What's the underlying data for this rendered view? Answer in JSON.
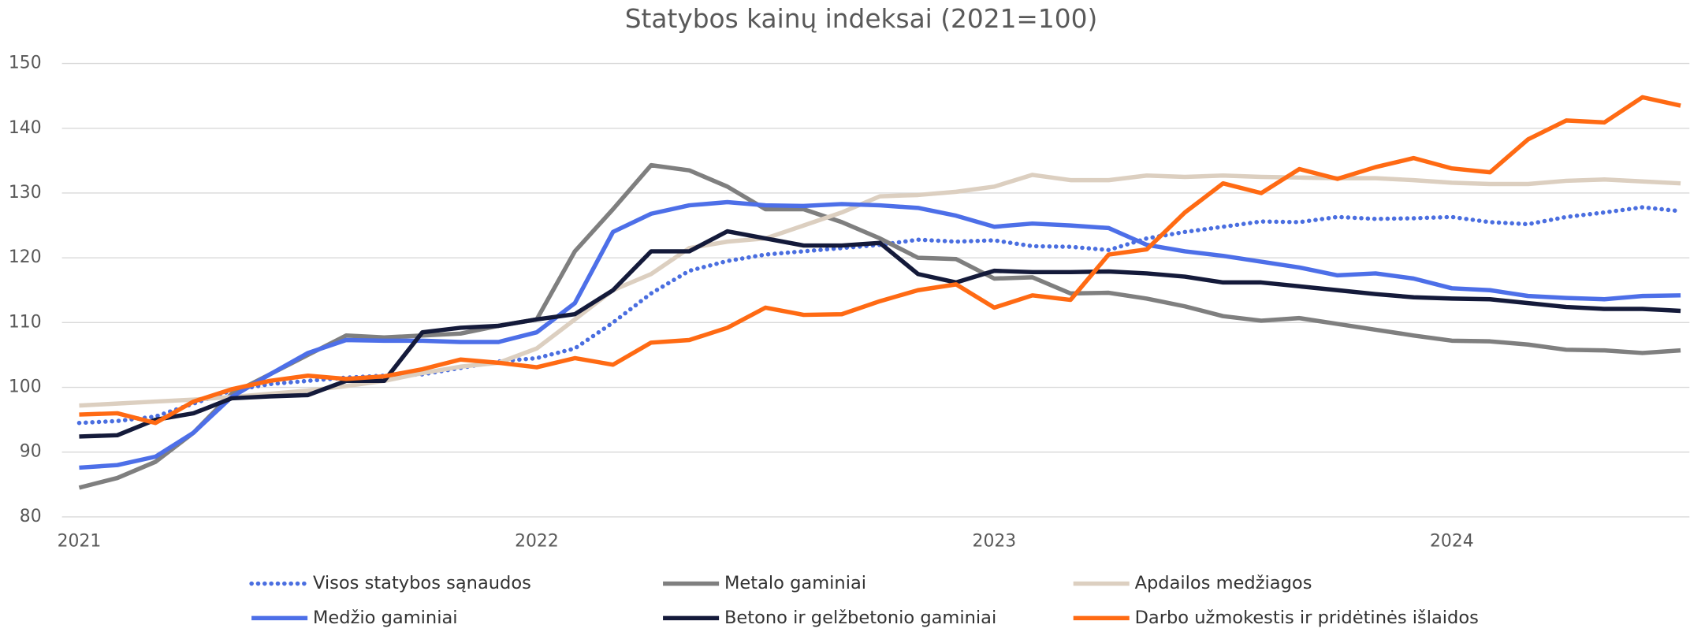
{
  "chart_data": {
    "type": "line",
    "title": "Statybos kainų indeksai (2021=100)",
    "categories": [
      "2021",
      null,
      null,
      null,
      null,
      null,
      null,
      null,
      null,
      null,
      null,
      null,
      "2022",
      null,
      null,
      null,
      null,
      null,
      null,
      null,
      null,
      null,
      null,
      null,
      "2023",
      null,
      null,
      null,
      null,
      null,
      null,
      null,
      null,
      null,
      null,
      null,
      "2024",
      null,
      null,
      null,
      null,
      null,
      null
    ],
    "series": [
      {
        "name": "Visos statybos sąnaudos",
        "color": "#4a6ee0",
        "style": "dotted",
        "values": [
          94.5,
          94.8,
          95.5,
          97.5,
          99.5,
          100.5,
          101,
          101.5,
          101.8,
          102,
          103,
          104,
          104.5,
          106,
          110,
          114.5,
          118,
          119.5,
          120.5,
          121,
          121.5,
          122,
          122.8,
          122.5,
          122.7,
          121.8,
          121.7,
          121.2,
          123,
          124,
          124.8,
          125.6,
          125.5,
          126.3,
          126,
          126.1,
          126.3,
          125.5,
          125.2,
          126.3,
          127,
          127.8,
          127.2
        ]
      },
      {
        "name": "Metalo gaminiai",
        "color": "#7f7f7f",
        "style": "solid",
        "values": [
          84.5,
          86,
          88.5,
          93,
          99,
          102,
          105,
          108,
          107.7,
          108,
          108.3,
          109.5,
          110.5,
          121,
          127.5,
          134.3,
          133.5,
          131,
          127.5,
          127.5,
          125.5,
          123,
          120,
          119.8,
          116.8,
          117,
          114.5,
          114.6,
          113.7,
          112.5,
          111,
          110.3,
          110.7,
          109.8,
          108.9,
          108,
          107.2,
          107.1,
          106.6,
          105.8,
          105.7,
          105.3,
          105.7
        ]
      },
      {
        "name": "Apdailos medžiagos",
        "color": "#dccfc0",
        "style": "solid",
        "values": [
          97.2,
          97.5,
          97.8,
          98.1,
          98.5,
          99,
          99.5,
          100.2,
          101,
          102.2,
          103.2,
          103.8,
          106,
          110.5,
          115,
          117.5,
          121.5,
          122.5,
          123,
          125,
          127,
          129.5,
          129.7,
          130.2,
          131,
          132.8,
          132,
          132,
          132.7,
          132.5,
          132.7,
          132.5,
          132.4,
          132.3,
          132.3,
          132,
          131.6,
          131.4,
          131.4,
          131.9,
          132.1,
          131.8,
          131.5
        ]
      },
      {
        "name": "Medžio gaminiai",
        "color": "#4d6fe8",
        "style": "solid",
        "values": [
          87.6,
          88,
          89.3,
          93,
          98.5,
          102,
          105.3,
          107.3,
          107.2,
          107.2,
          107,
          107,
          108.5,
          113,
          124,
          126.8,
          128.1,
          128.6,
          128.1,
          128,
          128.3,
          128.1,
          127.7,
          126.5,
          124.8,
          125.3,
          125,
          124.6,
          122,
          121,
          120.3,
          119.4,
          118.5,
          117.3,
          117.6,
          116.8,
          115.3,
          115,
          114.1,
          113.8,
          113.6,
          114.1,
          114.2
        ]
      },
      {
        "name": "Betono ir gelžbetonio gaminiai",
        "color": "#141a3a",
        "style": "solid",
        "values": [
          92.4,
          92.6,
          95,
          96,
          98.3,
          98.6,
          98.8,
          101,
          101,
          108.5,
          109.2,
          109.5,
          110.5,
          111.3,
          115,
          121,
          121,
          124.1,
          123,
          121.9,
          121.9,
          122.3,
          117.5,
          116.2,
          118,
          117.8,
          117.8,
          117.9,
          117.6,
          117.1,
          116.2,
          116.2,
          115.6,
          115,
          114.4,
          113.9,
          113.7,
          113.6,
          113,
          112.4,
          112.1,
          112.1,
          111.8
        ]
      },
      {
        "name": "Darbo užmokestis ir pridėtinės išlaidos",
        "color": "#ff6a13",
        "style": "solid",
        "values": [
          95.8,
          96,
          94.5,
          97.8,
          99.7,
          101,
          101.8,
          101.3,
          101.7,
          102.8,
          104.3,
          103.8,
          103.1,
          104.5,
          103.5,
          106.9,
          107.3,
          109.2,
          112.3,
          111.2,
          111.3,
          113.3,
          115,
          115.9,
          112.3,
          114.2,
          113.5,
          120.5,
          121.3,
          127,
          131.5,
          130,
          133.7,
          132.2,
          134,
          135.4,
          133.8,
          133.2,
          138.3,
          141.2,
          140.9,
          144.8,
          143.5
        ]
      }
    ],
    "ylim": [
      80,
      150
    ],
    "yticks": [
      80,
      90,
      100,
      110,
      120,
      130,
      140,
      150
    ],
    "grid": true
  }
}
